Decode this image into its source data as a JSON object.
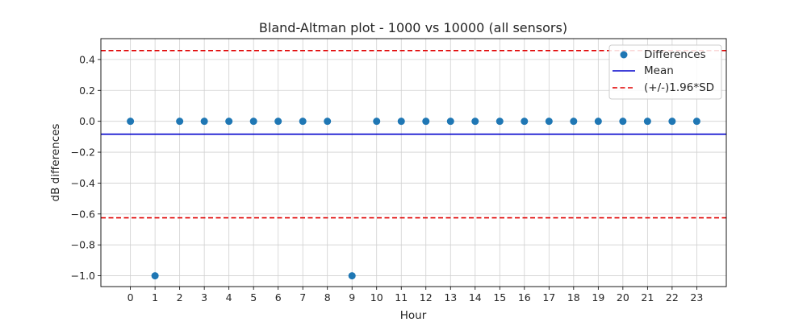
{
  "chart_data": {
    "type": "scatter",
    "title": "Bland-Altman plot - 1000 vs 10000 (all sensors)",
    "xlabel": "Hour",
    "ylabel": "dB differences",
    "x": [
      0,
      1,
      2,
      3,
      4,
      5,
      6,
      7,
      8,
      9,
      10,
      11,
      12,
      13,
      14,
      15,
      16,
      17,
      18,
      19,
      20,
      21,
      22,
      23
    ],
    "y": [
      0,
      -1,
      0,
      0,
      0,
      0,
      0,
      0,
      0,
      -1,
      0,
      0,
      0,
      0,
      0,
      0,
      0,
      0,
      0,
      0,
      0,
      0,
      0,
      0
    ],
    "xticks": [
      "0",
      "1",
      "2",
      "3",
      "4",
      "5",
      "6",
      "7",
      "8",
      "9",
      "10",
      "11",
      "12",
      "13",
      "14",
      "15",
      "16",
      "17",
      "18",
      "19",
      "20",
      "21",
      "22",
      "23"
    ],
    "yticks": [
      0.4,
      0.2,
      0.0,
      -0.2,
      -0.4,
      -0.6,
      -0.8,
      -1.0
    ],
    "ytick_labels": [
      "0.4",
      "0.2",
      "0.0",
      "−0.2",
      "−0.4",
      "−0.6",
      "−0.8",
      "−1.0"
    ],
    "xlim": [
      -1.2,
      24.2
    ],
    "ylim": [
      -1.07,
      0.535
    ],
    "mean": -0.0833,
    "upper_limit": 0.458,
    "lower_limit": -0.625,
    "grid": true,
    "legend_position": "top-right",
    "legend": {
      "differences": "Differences",
      "mean": "Mean",
      "limits": "(+/-)1.96*SD"
    },
    "colors": {
      "points": "#1f77b4",
      "mean": "#0000cc",
      "limits": "#e00000",
      "grid": "#d0d0d0"
    }
  }
}
